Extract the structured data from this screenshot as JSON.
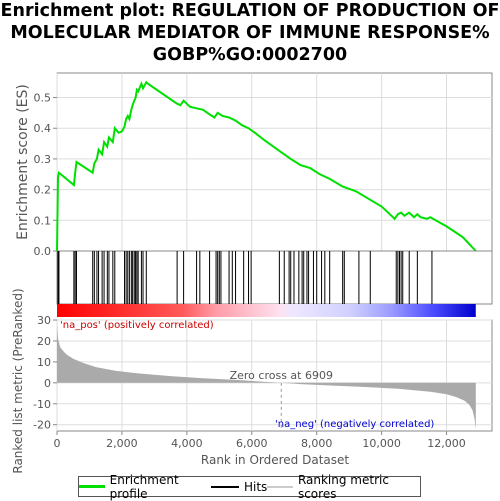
{
  "title_lines": [
    "Enrichment plot: REGULATION OF PRODUCTION OF",
    "MOLECULAR MEDIATOR OF IMMUNE RESPONSE%",
    "GOBP%GO:0002700"
  ],
  "chart_data": {
    "type": "line",
    "top_panel": {
      "ylabel": "Enrichment score (ES)",
      "ylim": [
        0,
        0.58
      ],
      "yticks": [
        "0.0",
        "0.1",
        "0.2",
        "0.3",
        "0.4",
        "0.5"
      ],
      "series": [
        {
          "name": "Enrichment profile",
          "color": "#00e000",
          "x": [
            0,
            30,
            60,
            520,
            560,
            600,
            1100,
            1150,
            1230,
            1280,
            1390,
            1450,
            1550,
            1600,
            1720,
            1780,
            1900,
            2000,
            2080,
            2130,
            2180,
            2230,
            2290,
            2330,
            2380,
            2420,
            2460,
            2500,
            2600,
            2650,
            2750,
            2800,
            3700,
            3800,
            3900,
            4100,
            4300,
            4500,
            4700,
            4850,
            4950,
            5100,
            5300,
            5500,
            5700,
            5900,
            6100,
            6400,
            6800,
            7200,
            7500,
            7800,
            8100,
            8400,
            8800,
            9200,
            9600,
            10000,
            10300,
            10400,
            10500,
            10600,
            10700,
            10850,
            11000,
            11100,
            11200,
            11400,
            11500,
            12000,
            12500,
            12900
          ],
          "y": [
            0.0,
            0.24,
            0.255,
            0.215,
            0.255,
            0.29,
            0.255,
            0.285,
            0.3,
            0.33,
            0.315,
            0.355,
            0.34,
            0.37,
            0.355,
            0.4,
            0.385,
            0.39,
            0.405,
            0.43,
            0.44,
            0.43,
            0.46,
            0.475,
            0.49,
            0.5,
            0.525,
            0.52,
            0.545,
            0.53,
            0.55,
            0.545,
            0.48,
            0.475,
            0.49,
            0.47,
            0.465,
            0.46,
            0.445,
            0.435,
            0.45,
            0.44,
            0.435,
            0.425,
            0.41,
            0.4,
            0.385,
            0.36,
            0.33,
            0.3,
            0.28,
            0.27,
            0.25,
            0.235,
            0.21,
            0.195,
            0.17,
            0.145,
            0.115,
            0.105,
            0.12,
            0.125,
            0.115,
            0.125,
            0.11,
            0.12,
            0.11,
            0.105,
            0.11,
            0.08,
            0.045,
            0.0
          ]
        }
      ]
    },
    "hits": {
      "name": "Hits",
      "positions": [
        30,
        60,
        520,
        560,
        600,
        1100,
        1150,
        1230,
        1280,
        1390,
        1450,
        1550,
        1600,
        1720,
        1780,
        2080,
        2130,
        2180,
        2230,
        2290,
        2330,
        2380,
        2420,
        2460,
        2500,
        2600,
        2650,
        2750,
        3700,
        3900,
        4300,
        4400,
        4700,
        4900,
        4950,
        5000,
        5050,
        5300,
        5400,
        5500,
        5750,
        5900,
        5980,
        6850,
        7000,
        7150,
        7200,
        7300,
        7450,
        7550,
        7600,
        7700,
        7750,
        7900,
        8000,
        8150,
        8250,
        8400,
        8800,
        8850,
        9300,
        9650,
        10450,
        10500,
        10550,
        10600,
        10650,
        10850,
        11100,
        11550
      ]
    },
    "bottom_panel": {
      "ylabel": "Ranked list metric (PreRanked)",
      "ylim": [
        -23,
        30
      ],
      "yticks": [
        "30",
        "20",
        "10",
        "0",
        "-10",
        "-20"
      ],
      "series": [
        {
          "name": "Ranking metric scores",
          "color": "#aaaaaa",
          "x": [
            0,
            30,
            100,
            200,
            300,
            500,
            800,
            1200,
            1800,
            2500,
            3500,
            4500,
            5500,
            6300,
            6909,
            7500,
            8500,
            9500,
            10500,
            11000,
            11500,
            12000,
            12300,
            12550,
            12700,
            12800,
            12860,
            12900
          ],
          "y": [
            28,
            21,
            17,
            15,
            13.5,
            11.5,
            9.5,
            7.5,
            5.8,
            4.5,
            3.2,
            2.2,
            1.4,
            0.6,
            0,
            -0.6,
            -1.3,
            -2.0,
            -2.8,
            -3.5,
            -4.3,
            -5.5,
            -6.8,
            -8.5,
            -10.5,
            -13,
            -17,
            -22
          ]
        }
      ],
      "pos_label": "'na_pos' (positively correlated)",
      "neg_label": "'na_neg' (negatively correlated)",
      "zero_label": "Zero cross at 6909",
      "zero_cross": 6909
    },
    "xlabel": "Rank in Ordered Dataset",
    "xlim": [
      0,
      13400
    ],
    "xmax_rank": 12900,
    "xticks": [
      0,
      2000,
      4000,
      6000,
      8000,
      10000,
      12000
    ],
    "xtick_labels": [
      "0",
      "2,000",
      "4,000",
      "6,000",
      "8,000",
      "10,000",
      "12,000"
    ],
    "legend": [
      "Enrichment profile",
      "Hits",
      "Ranking metric scores"
    ],
    "colors": {
      "profile": "#00e000",
      "hits": "#000000",
      "metric": "#aaaaaa",
      "pos_text": "#cc0000",
      "neg_text": "#0000cc",
      "grid": "#dddddd"
    }
  }
}
